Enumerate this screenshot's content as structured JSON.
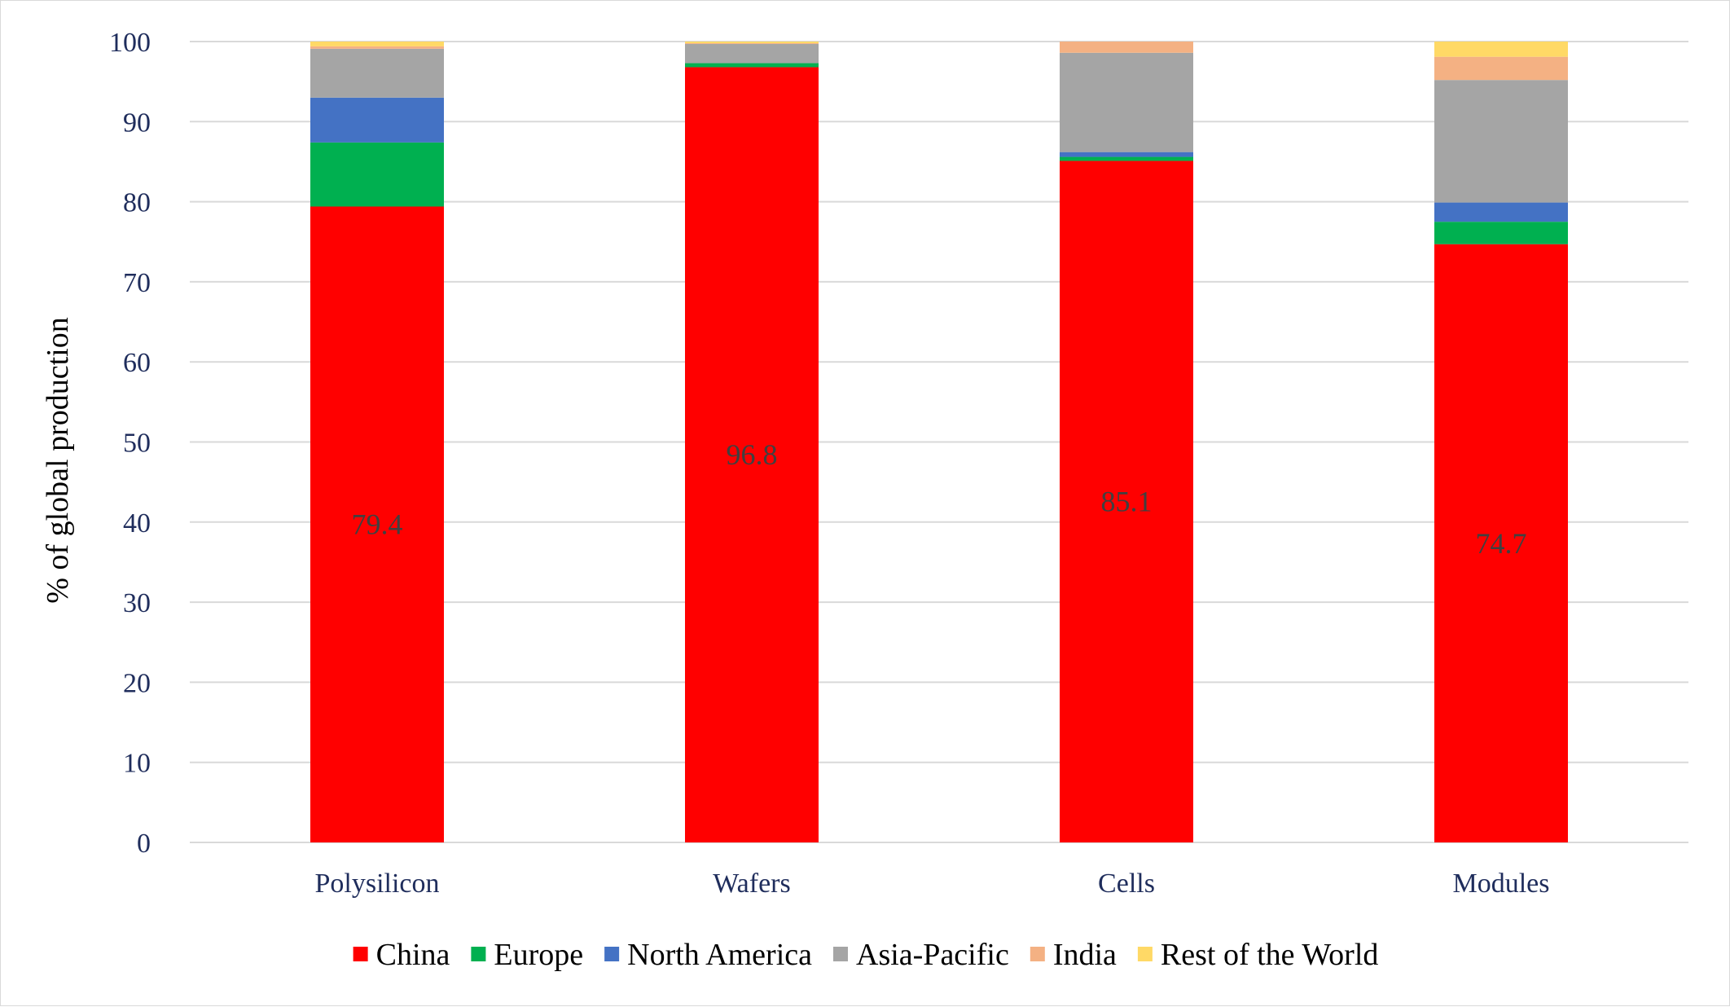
{
  "chart_data": {
    "type": "bar",
    "stacked": true,
    "categories": [
      "Polysilicon",
      "Wafers",
      "Cells",
      "Modules"
    ],
    "series": [
      {
        "name": "China",
        "color": "#FF0000",
        "values": [
          79.4,
          96.8,
          85.1,
          74.7
        ]
      },
      {
        "name": "Europe",
        "color": "#00B050",
        "values": [
          8.0,
          0.5,
          0.5,
          2.8
        ]
      },
      {
        "name": "North America",
        "color": "#4472C4",
        "values": [
          5.6,
          0.0,
          0.6,
          2.4
        ]
      },
      {
        "name": "Asia-Pacific",
        "color": "#A5A5A5",
        "values": [
          6.1,
          2.4,
          12.4,
          15.3
        ]
      },
      {
        "name": "India",
        "color": "#F4B183",
        "values": [
          0.3,
          0.1,
          1.4,
          2.9
        ]
      },
      {
        "name": "Rest of the World",
        "color": "#FFD966",
        "values": [
          0.6,
          0.2,
          0.0,
          1.9
        ]
      }
    ],
    "data_labels": {
      "series": "China",
      "values": [
        "79.4",
        "96.8",
        "85.1",
        "74.7"
      ]
    },
    "title": "",
    "xlabel": "",
    "ylabel": "% of global production",
    "ylim": [
      0,
      100
    ],
    "yticks": [
      "0",
      "10",
      "20",
      "30",
      "40",
      "50",
      "60",
      "70",
      "80",
      "90",
      "100"
    ],
    "grid": true,
    "legend_position": "bottom",
    "colors": {
      "axis_text": "#1F2D5C",
      "data_label": "#404040",
      "legend_text": "#000000",
      "grid": "#D9D9D9"
    }
  }
}
